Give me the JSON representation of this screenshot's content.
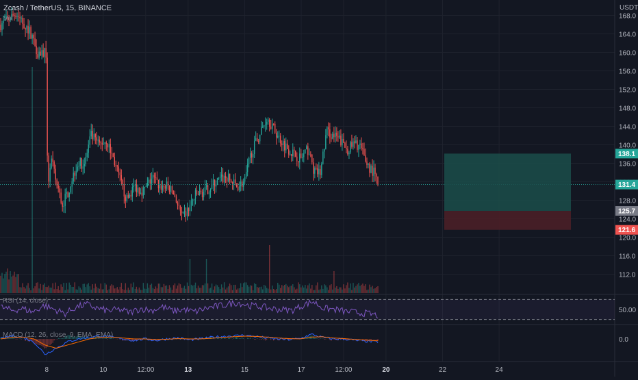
{
  "header": {
    "symbol": "Zcash / TetherUS, 15, BINANCE",
    "volume_label": "Vol",
    "currency": "USDT"
  },
  "colors": {
    "background": "#131722",
    "grid": "#1e222d",
    "up": "#26a69a",
    "down": "#ef5350",
    "rsi": "#7e57c2",
    "macd": "#2962ff",
    "signal": "#ff6d00",
    "target_zone": "#1b4d4a",
    "stop_zone": "#4a1f27"
  },
  "chart_data": [
    {
      "type": "candlestick",
      "title": "Zcash / TetherUS, 15, BINANCE",
      "ylabel": "USDT",
      "ylim": [
        109,
        169
      ],
      "y_ticks": [
        168.0,
        164.0,
        160.0,
        156.0,
        152.0,
        148.0,
        144.0,
        140.0,
        136.0,
        132.0,
        128.0,
        124.0,
        120.0,
        116.0,
        112.0
      ],
      "x_ticks": [
        "8",
        "10",
        "12:00",
        "13",
        "15",
        "17",
        "12:00",
        "20",
        "22",
        "24"
      ],
      "x_tick_bold": [
        "13",
        "20"
      ],
      "price_path": [
        [
          0,
          166
        ],
        [
          1.5,
          168.5
        ],
        [
          3,
          164
        ],
        [
          3.6,
          160
        ],
        [
          4.4,
          160
        ],
        [
          4.6,
          131
        ],
        [
          4.9,
          137
        ],
        [
          5.4,
          132
        ],
        [
          6,
          127
        ],
        [
          6.6,
          130
        ],
        [
          7,
          133
        ],
        [
          7.5,
          136
        ],
        [
          8.2,
          136
        ],
        [
          8.8,
          142
        ],
        [
          9.6,
          140
        ],
        [
          10.3,
          141
        ],
        [
          11,
          137
        ],
        [
          11.7,
          132
        ],
        [
          12.3,
          128
        ],
        [
          13,
          131
        ],
        [
          14,
          130
        ],
        [
          14.8,
          133
        ],
        [
          15.5,
          131
        ],
        [
          16.3,
          131
        ],
        [
          17,
          129
        ],
        [
          17.7,
          124
        ],
        [
          18.3,
          126
        ],
        [
          19,
          129
        ],
        [
          20,
          130
        ],
        [
          21,
          132
        ],
        [
          22,
          133
        ],
        [
          23,
          131
        ],
        [
          23.8,
          132
        ],
        [
          24.4,
          138
        ],
        [
          25.2,
          142
        ],
        [
          26,
          146
        ],
        [
          27,
          142
        ],
        [
          27.7,
          140
        ],
        [
          28.6,
          138
        ],
        [
          29.3,
          137
        ],
        [
          30,
          139
        ],
        [
          30.6,
          134
        ],
        [
          31.2,
          134
        ],
        [
          31.8,
          143
        ],
        [
          32.4,
          142
        ],
        [
          33.1,
          141
        ],
        [
          33.8,
          139
        ],
        [
          34.4,
          140
        ],
        [
          35,
          140
        ],
        [
          35.5,
          137
        ],
        [
          36,
          135
        ],
        [
          36.4,
          134
        ],
        [
          36.8,
          131.4
        ]
      ],
      "annotations": {
        "current_price": 131.4,
        "target_price": 138.1,
        "entry_price": 125.7,
        "stop_price": 121.6,
        "zone_start_day": 42.3,
        "zone_end_day": 54.4
      }
    },
    {
      "type": "line",
      "title": "RSI (14, close)",
      "ylim": [
        20,
        80
      ],
      "y_ticks": [
        50.0
      ],
      "bands": [
        70,
        30
      ],
      "series": [
        {
          "name": "RSI",
          "values": [
            55,
            48,
            52,
            45,
            58,
            50,
            42,
            55,
            60,
            52,
            47,
            50,
            44,
            52,
            48,
            55,
            47,
            50,
            45,
            52,
            56,
            60,
            64,
            58,
            56,
            52,
            50,
            48,
            58,
            66,
            52,
            50,
            46,
            44,
            42,
            38
          ]
        }
      ]
    },
    {
      "type": "line",
      "title": "MACD (12, 26, close, 9, EMA, EMA)",
      "ylim": [
        -6,
        6
      ],
      "y_ticks": [
        0.0
      ],
      "series": [
        {
          "name": "MACD",
          "values": [
            0,
            1,
            0.5,
            -1,
            -5,
            -3,
            -1,
            0,
            0.5,
            1,
            0.5,
            0,
            -0.5,
            0,
            -0.5,
            0,
            0.3,
            -0.3,
            0,
            0.5,
            0.8,
            1,
            1.2,
            0.8,
            0.3,
            0,
            -0.2,
            0.1,
            1.5,
            0.5,
            0,
            0,
            -0.5,
            -0.8,
            -1
          ]
        },
        {
          "name": "Signal",
          "values": [
            0,
            0.5,
            0.6,
            0,
            -2,
            -3,
            -2,
            -1,
            0,
            0.5,
            0.6,
            0.3,
            0,
            0,
            -0.2,
            -0.1,
            0.1,
            0,
            0,
            0.2,
            0.5,
            0.7,
            0.9,
            0.8,
            0.6,
            0.3,
            0.1,
            0,
            0.6,
            0.7,
            0.3,
            0.1,
            -0.2,
            -0.4,
            -0.6
          ]
        }
      ]
    }
  ]
}
